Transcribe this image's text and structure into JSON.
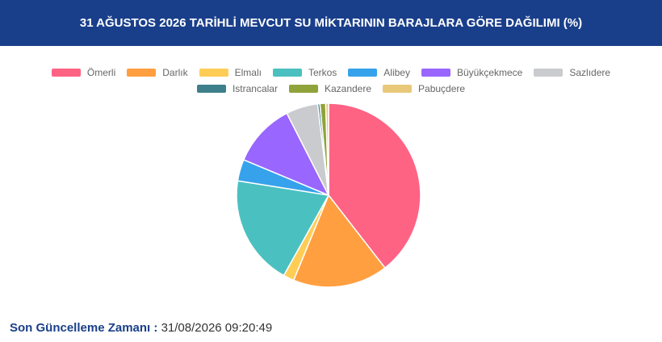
{
  "chart_data": {
    "type": "pie",
    "title": "31 AĞUSTOS 2026 TARİHLİ MEVCUT SU MİKTARININ BARAJLARA GÖRE DAĞILIMI (%)",
    "categories": [
      "Ömerli",
      "Darlık",
      "Elmalı",
      "Terkos",
      "Alibey",
      "Büyükçekmece",
      "Sazlıdere",
      "Istrancalar",
      "Kazandere",
      "Pabuçdere"
    ],
    "values": [
      39.5,
      16.7,
      1.9,
      19.4,
      3.8,
      11.2,
      5.6,
      0.4,
      1.0,
      0.5
    ],
    "colors": [
      "#ff6384",
      "#ff9f40",
      "#ffcd56",
      "#4bc0c0",
      "#36a2eb",
      "#9966ff",
      "#c9cbcf",
      "#3d7f8a",
      "#8fa33a",
      "#e8c97a"
    ],
    "legend": "top"
  },
  "footer": {
    "label": "Son Güncelleme Zamanı :",
    "value": "31/08/2026 09:20:49"
  }
}
